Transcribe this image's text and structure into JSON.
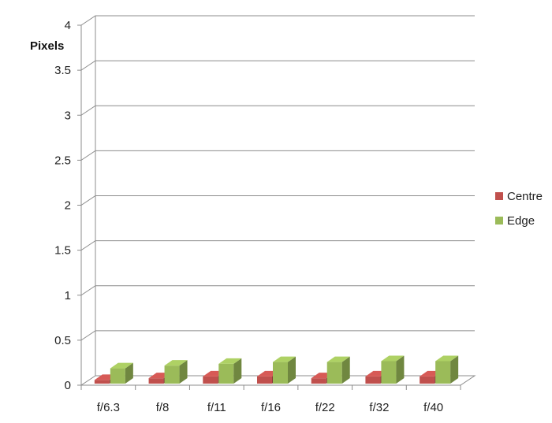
{
  "chart_data": {
    "type": "bar",
    "ylabel": "Pixels",
    "xlabel": "",
    "title": "",
    "categories": [
      "f/6.3",
      "f/8",
      "f/11",
      "f/16",
      "f/22",
      "f/32",
      "f/40"
    ],
    "series": [
      {
        "name": "Centre",
        "values": [
          0.04,
          0.06,
          0.08,
          0.08,
          0.06,
          0.08,
          0.08
        ],
        "color": "#c0504d"
      },
      {
        "name": "Edge",
        "values": [
          0.17,
          0.2,
          0.22,
          0.24,
          0.24,
          0.25,
          0.25
        ],
        "color": "#9bbb59"
      }
    ],
    "ylim": [
      0,
      4
    ],
    "yticks": [
      "0",
      "0.5",
      "1",
      "1.5",
      "2",
      "2.5",
      "3",
      "3.5",
      "4"
    ],
    "grid": true,
    "legend_position": "right",
    "style": "3d-clustered-column"
  }
}
